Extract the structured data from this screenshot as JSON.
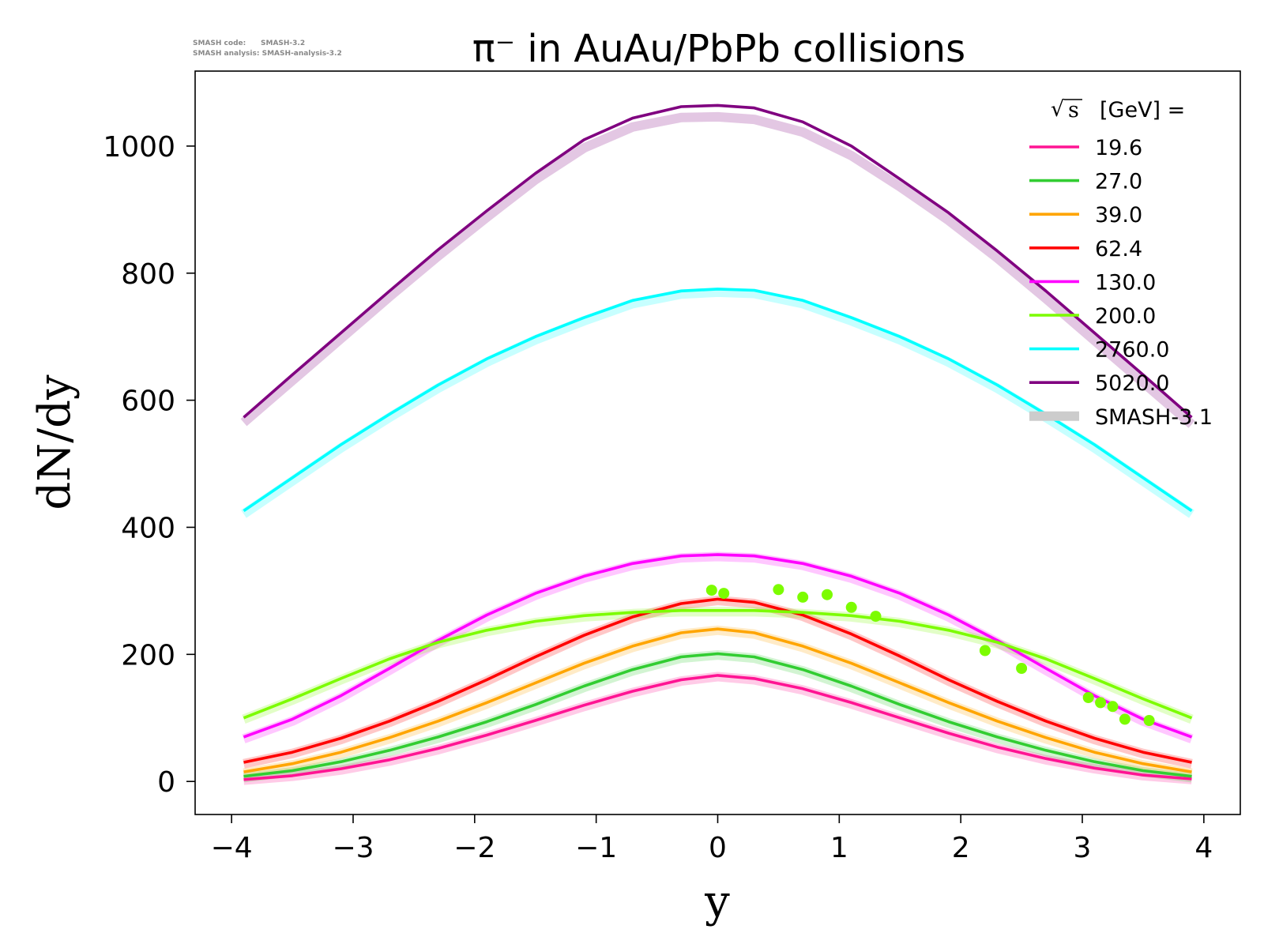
{
  "meta": {
    "line1": "SMASH code:      SMASH-3.2",
    "line2": "SMASH analysis: SMASH-analysis-3.2"
  },
  "chart_data": {
    "type": "line",
    "title": "π⁻ in AuAu/PbPb collisions",
    "xlabel": "y",
    "ylabel": "dN/dy",
    "xlim": [
      -4.3,
      4.3
    ],
    "ylim": [
      -52,
      1118
    ],
    "xticks": [
      -4,
      -3,
      -2,
      -1,
      0,
      1,
      2,
      3,
      4
    ],
    "xtick_labels": [
      "−4",
      "−3",
      "−2",
      "−1",
      "0",
      "1",
      "2",
      "3",
      "4"
    ],
    "yticks": [
      0,
      200,
      400,
      600,
      800,
      1000
    ],
    "ytick_labels": [
      "0",
      "200",
      "400",
      "600",
      "800",
      "1000"
    ],
    "grid": false,
    "legend": {
      "placement": "top-right",
      "title_prefix": "s",
      "title_suffix": "[GeV] =",
      "reference_label": "SMASH-3.1",
      "reference_color": "#cccccc"
    },
    "x": [
      -3.9,
      -3.5,
      -3.1,
      -2.7,
      -2.3,
      -1.9,
      -1.5,
      -1.1,
      -0.7,
      -0.3,
      0.0,
      0.3,
      0.7,
      1.1,
      1.5,
      1.9,
      2.3,
      2.7,
      3.1,
      3.5,
      3.9
    ],
    "series": [
      {
        "name": "19.6",
        "color": "#ff1493",
        "values": [
          3,
          9,
          20,
          34,
          52,
          73,
          96,
          120,
          142,
          160,
          167,
          162,
          146,
          124,
          100,
          76,
          54,
          36,
          21,
          10,
          4
        ],
        "reference": [
          2,
          8,
          18,
          32,
          50,
          71,
          94,
          118,
          140,
          158,
          165,
          160,
          144,
          122,
          98,
          74,
          52,
          34,
          20,
          9,
          3
        ]
      },
      {
        "name": "27.0",
        "color": "#32cd32",
        "values": [
          8,
          17,
          31,
          49,
          70,
          94,
          121,
          150,
          176,
          196,
          201,
          196,
          176,
          150,
          121,
          94,
          70,
          49,
          31,
          17,
          8
        ],
        "reference": [
          6,
          15,
          29,
          47,
          68,
          92,
          119,
          148,
          174,
          194,
          199,
          194,
          174,
          148,
          119,
          92,
          68,
          47,
          29,
          15,
          6
        ]
      },
      {
        "name": "39.0",
        "color": "#ffa500",
        "values": [
          15,
          28,
          46,
          69,
          95,
          124,
          155,
          186,
          213,
          234,
          240,
          234,
          213,
          186,
          155,
          124,
          95,
          69,
          46,
          28,
          15
        ],
        "reference": [
          13,
          26,
          44,
          67,
          93,
          122,
          153,
          184,
          211,
          232,
          238,
          232,
          211,
          184,
          153,
          122,
          93,
          67,
          44,
          26,
          13
        ]
      },
      {
        "name": "62.4",
        "color": "#ff0000",
        "values": [
          30,
          46,
          68,
          95,
          126,
          160,
          196,
          230,
          259,
          280,
          287,
          282,
          262,
          232,
          197,
          160,
          126,
          95,
          68,
          46,
          30
        ],
        "reference": [
          28,
          44,
          66,
          93,
          124,
          158,
          194,
          228,
          257,
          278,
          285,
          280,
          260,
          230,
          195,
          158,
          124,
          93,
          66,
          44,
          28
        ]
      },
      {
        "name": "130.0",
        "color": "#ff00ff",
        "values": [
          70,
          98,
          135,
          178,
          222,
          262,
          296,
          323,
          343,
          355,
          357,
          355,
          343,
          323,
          296,
          262,
          222,
          178,
          135,
          98,
          70
        ],
        "reference": [
          67,
          95,
          132,
          175,
          219,
          259,
          293,
          320,
          340,
          352,
          354,
          352,
          340,
          320,
          293,
          259,
          219,
          175,
          132,
          95,
          67
        ]
      },
      {
        "name": "200.0",
        "color": "#7cfc00",
        "values": [
          100,
          130,
          162,
          193,
          219,
          238,
          252,
          261,
          266,
          269,
          269,
          269,
          266,
          261,
          252,
          238,
          219,
          193,
          162,
          130,
          100
        ],
        "reference": [
          98,
          128,
          160,
          191,
          217,
          236,
          250,
          259,
          264,
          267,
          267,
          267,
          264,
          259,
          250,
          236,
          217,
          191,
          160,
          128,
          98
        ],
        "points_x": [
          -0.05,
          0.05,
          0.5,
          0.7,
          0.9,
          1.1,
          1.3,
          2.2,
          2.5,
          3.05,
          3.15,
          3.25,
          3.35,
          3.55
        ],
        "points_y": [
          301,
          296,
          302,
          290,
          294,
          274,
          260,
          206,
          178,
          132,
          124,
          118,
          98,
          96
        ]
      },
      {
        "name": "2760.0",
        "color": "#00ffff",
        "values": [
          426,
          478,
          530,
          578,
          624,
          665,
          700,
          730,
          757,
          772,
          775,
          773,
          757,
          730,
          700,
          665,
          624,
          578,
          530,
          478,
          426
        ],
        "reference": [
          421,
          473,
          525,
          573,
          619,
          660,
          695,
          725,
          752,
          767,
          770,
          768,
          752,
          725,
          695,
          660,
          619,
          573,
          525,
          473,
          421
        ]
      },
      {
        "name": "5020.0",
        "color": "#800080",
        "values": [
          573,
          640,
          706,
          772,
          837,
          898,
          957,
          1010,
          1044,
          1062,
          1064,
          1060,
          1038,
          1000,
          948,
          895,
          835,
          772,
          706,
          640,
          573
        ],
        "reference": [
          565,
          631,
          697,
          763,
          827,
          888,
          947,
          997,
          1030,
          1045,
          1046,
          1042,
          1022,
          985,
          936,
          883,
          824,
          760,
          694,
          628,
          562
        ]
      }
    ]
  }
}
